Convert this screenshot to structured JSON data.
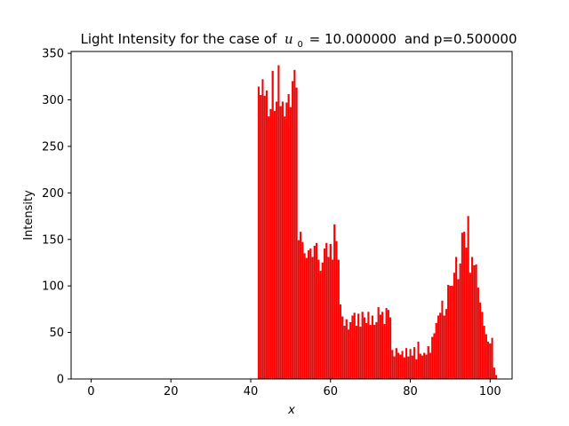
{
  "chart_data": {
    "type": "bar",
    "title_prefix": "Light Intensity for the case of",
    "title_u_symbol": "u",
    "title_u_subscript": "0",
    "title_u_value": "= 10.000000",
    "title_suffix": "and p=0.500000",
    "xlabel": "x",
    "ylabel": "Intensity",
    "xlim": [
      -5,
      105.5
    ],
    "ylim": [
      0,
      352
    ],
    "xticks": [
      0,
      20,
      40,
      60,
      80,
      100
    ],
    "yticks": [
      0,
      50,
      100,
      150,
      200,
      250,
      300,
      350
    ],
    "bar_color": "#ff0000",
    "bar_edge_color": "#d00000",
    "x_start": 42,
    "x_step": 0.5,
    "values": [
      314,
      305,
      322,
      304,
      310,
      282,
      290,
      331,
      288,
      298,
      337,
      293,
      298,
      282,
      297,
      306,
      292,
      320,
      332,
      313,
      149,
      158,
      147,
      135,
      130,
      138,
      140,
      131,
      143,
      146,
      128,
      116,
      125,
      140,
      146,
      131,
      145,
      128,
      166,
      148,
      128,
      80,
      67,
      57,
      64,
      53,
      61,
      68,
      71,
      57,
      70,
      56,
      72,
      66,
      60,
      72,
      58,
      68,
      58,
      61,
      77,
      69,
      72,
      59,
      76,
      74,
      66,
      31,
      24,
      33,
      28,
      26,
      30,
      23,
      33,
      24,
      32,
      25,
      34,
      21,
      40,
      27,
      25,
      28,
      26,
      35,
      28,
      45,
      49,
      60,
      68,
      71,
      84,
      68,
      75,
      101,
      100,
      100,
      114,
      131,
      107,
      124,
      157,
      158,
      141,
      175,
      114,
      131,
      122,
      123,
      98,
      82,
      72,
      57,
      48,
      40,
      38,
      44,
      12,
      4
    ]
  }
}
